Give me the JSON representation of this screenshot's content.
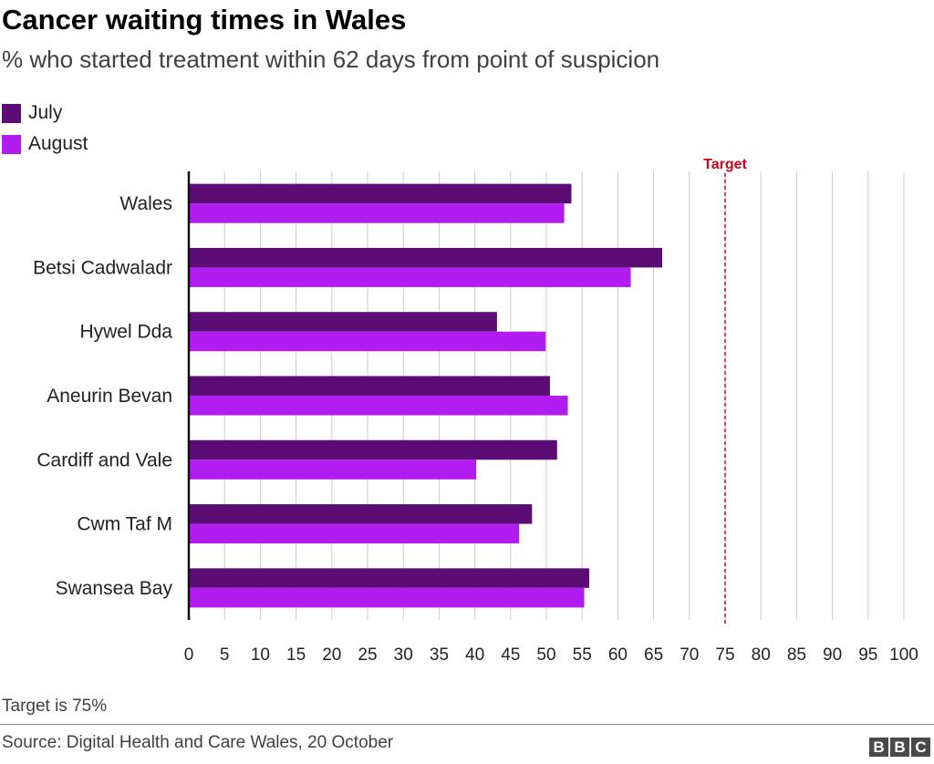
{
  "header": {
    "title": "Cancer waiting times in Wales",
    "subtitle": "% who started treatment within 62 days from point of suspicion"
  },
  "colors": {
    "july": "#5b0d75",
    "august": "#b11cf0",
    "target": "#d0021b",
    "grid": "#cccccc"
  },
  "chart_data": {
    "type": "bar",
    "orientation": "horizontal",
    "categories": [
      "Wales",
      "Betsi Cadwaladr",
      "Hywel Dda",
      "Aneurin Bevan",
      "Cardiff and Vale",
      "Cwm Taf M",
      "Swansea Bay"
    ],
    "series": [
      {
        "name": "July",
        "values": [
          53.5,
          66.2,
          43.1,
          50.5,
          51.5,
          48.0,
          56.0
        ]
      },
      {
        "name": "August",
        "values": [
          52.5,
          61.8,
          49.9,
          53.0,
          40.2,
          46.2,
          55.3
        ]
      }
    ],
    "xlim": [
      0,
      100
    ],
    "xticks": [
      0,
      5,
      10,
      15,
      20,
      25,
      30,
      35,
      40,
      45,
      50,
      55,
      60,
      65,
      70,
      75,
      80,
      85,
      90,
      95,
      100
    ],
    "grid": true,
    "legend": "top-left",
    "reference_line": {
      "value": 75,
      "label": "Target"
    }
  },
  "footer": {
    "note": "Target is 75%",
    "source": "Source: Digital Health and Care Wales, 20 October",
    "logo_letters": [
      "B",
      "B",
      "C"
    ]
  }
}
